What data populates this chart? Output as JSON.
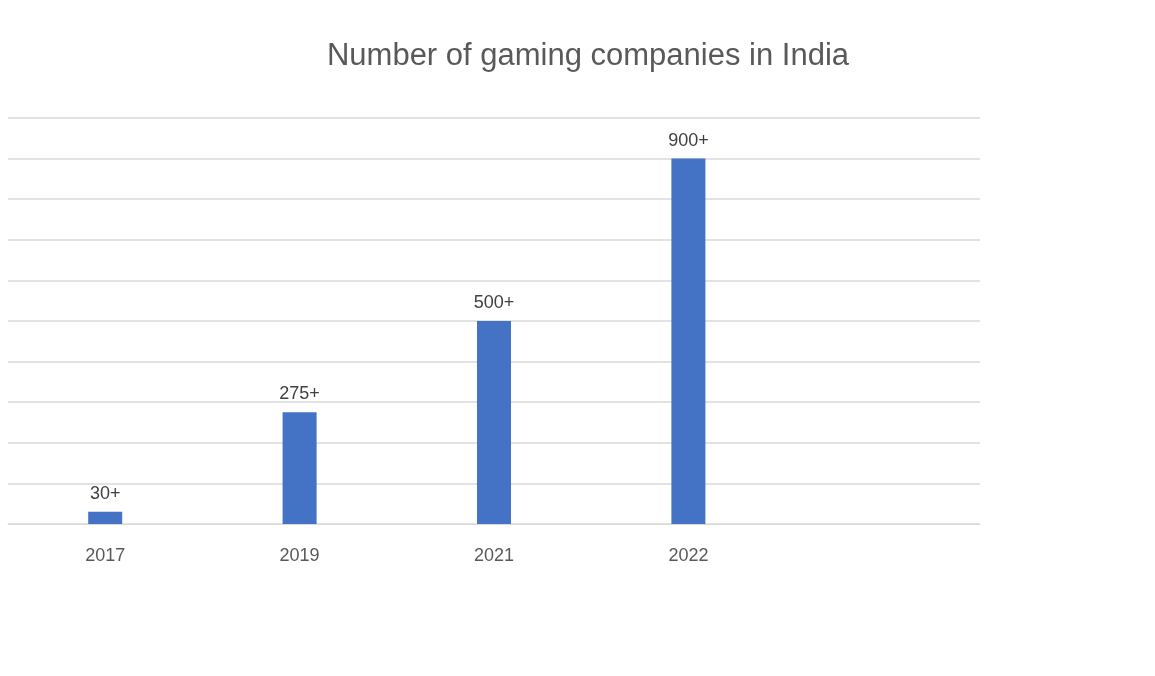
{
  "chart_data": {
    "type": "bar",
    "title": "Number of gaming companies in India",
    "categories": [
      "2017",
      "2019",
      "2021",
      "2022",
      null
    ],
    "values": [
      30,
      275,
      500,
      900,
      null
    ],
    "value_labels": [
      "30+",
      "275+",
      "500+",
      "900+",
      null
    ],
    "color": "#4472c4",
    "ylim": [
      0,
      1000
    ],
    "yticks": [
      {
        "value": 0,
        "label": null
      },
      {
        "value": 100,
        "label": null
      },
      {
        "value": 200,
        "label": null
      },
      {
        "value": 300,
        "label": null
      },
      {
        "value": 400,
        "label": null
      },
      {
        "value": 500,
        "label": null
      },
      {
        "value": 600,
        "label": null
      },
      {
        "value": 700,
        "label": null
      },
      {
        "value": 800,
        "label": null
      },
      {
        "value": 900,
        "label": null
      },
      {
        "value": 1000,
        "label": null
      }
    ],
    "tick_labels": "x",
    "grid": "y"
  }
}
